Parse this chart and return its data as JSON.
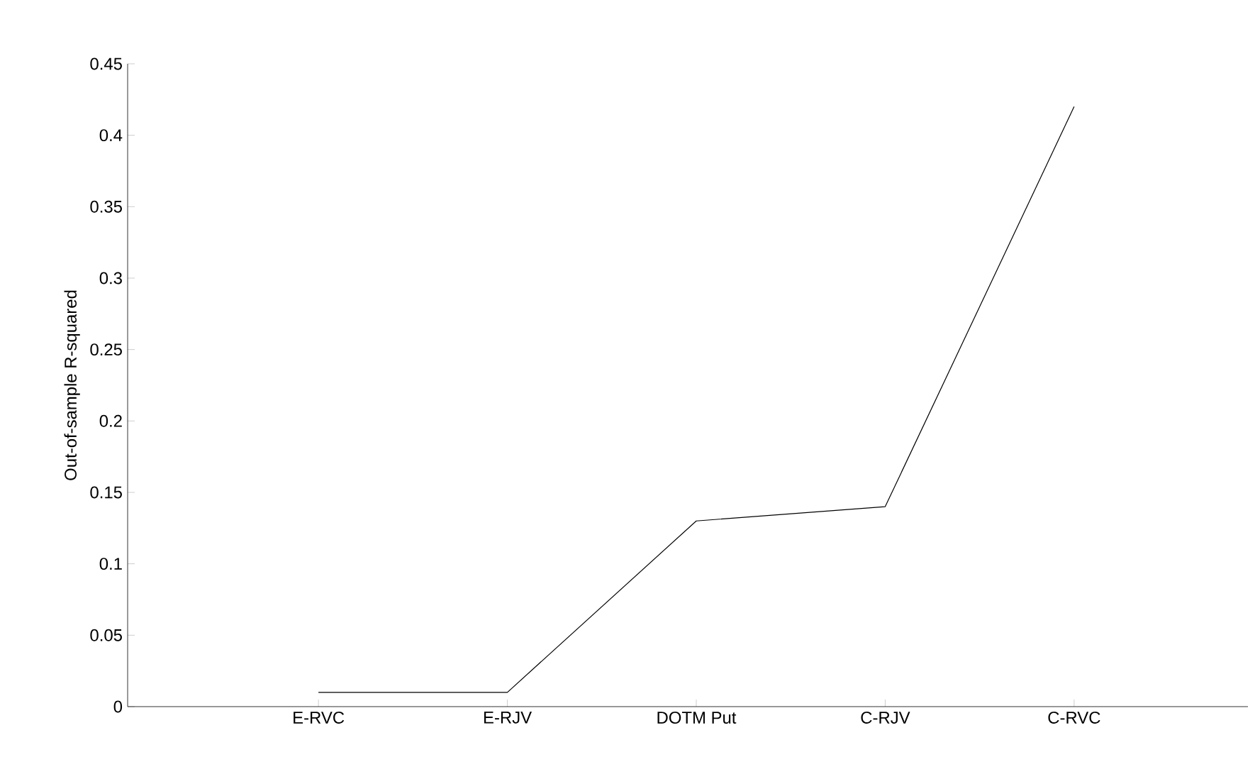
{
  "chart_data": {
    "type": "line",
    "ylabel": "Out-of-sample R-squared",
    "categories": [
      "E-RVC",
      "E-RJV",
      "DOTM Put",
      "C-RJV",
      "C-RVC"
    ],
    "values": [
      0.01,
      0.01,
      0.13,
      0.14,
      0.42
    ],
    "color": "#000000",
    "ylim": [
      0,
      0.45
    ],
    "yticks": [
      0,
      0.05,
      0.1,
      0.15,
      0.2,
      0.25,
      0.3,
      0.35,
      0.4,
      0.45
    ],
    "marker": "none",
    "line_style": "solid"
  }
}
